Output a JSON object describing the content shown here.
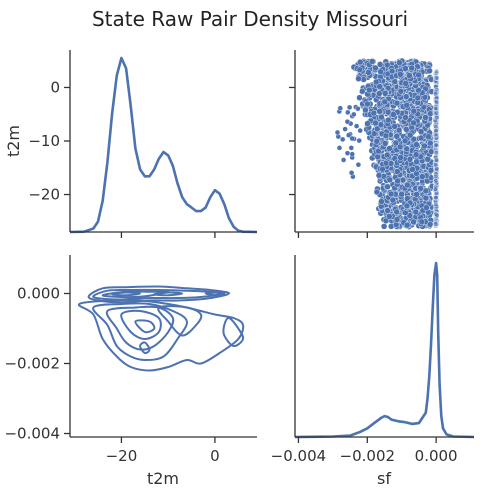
{
  "chart_data": {
    "type": "pairplot",
    "title": "State Raw Pair Density Missouri",
    "variables": [
      "t2m",
      "sf"
    ],
    "color": "#4c72b0",
    "t2m": {
      "label": "t2m",
      "range": [
        -31,
        9
      ],
      "ticks": [
        -20,
        0
      ],
      "tick_labels": [
        "−20",
        "0"
      ],
      "y_range": [
        -27,
        7
      ],
      "y_ticks": [
        0,
        -10,
        -20
      ],
      "y_tick_labels": [
        "0",
        "−10",
        "−20"
      ]
    },
    "sf": {
      "label": "sf",
      "range": [
        -0.0041,
        0.0011
      ],
      "ticks": [
        -0.004,
        -0.002,
        0.0
      ],
      "tick_labels": [
        "−0.004",
        "−0.002",
        "0.000"
      ],
      "y_range": [
        -0.0041,
        0.0011
      ],
      "y_ticks": [
        0.0,
        -0.002,
        -0.004
      ],
      "y_tick_labels": [
        "0.000",
        "−0.002",
        "−0.004"
      ]
    },
    "diag_t2m_density": [
      [
        -31,
        0.0
      ],
      [
        -28,
        0.001
      ],
      [
        -26,
        0.01
      ],
      [
        -25,
        0.03
      ],
      [
        -24,
        0.09
      ],
      [
        -23,
        0.2
      ],
      [
        -22,
        0.34
      ],
      [
        -21,
        0.45
      ],
      [
        -20,
        0.5
      ],
      [
        -19,
        0.47
      ],
      [
        -18,
        0.36
      ],
      [
        -17,
        0.24
      ],
      [
        -16,
        0.18
      ],
      [
        -15,
        0.16
      ],
      [
        -14,
        0.16
      ],
      [
        -13,
        0.18
      ],
      [
        -12,
        0.21
      ],
      [
        -11,
        0.23
      ],
      [
        -10,
        0.22
      ],
      [
        -9,
        0.19
      ],
      [
        -8,
        0.14
      ],
      [
        -7,
        0.1
      ],
      [
        -6,
        0.08
      ],
      [
        -5,
        0.07
      ],
      [
        -4,
        0.06
      ],
      [
        -3,
        0.06
      ],
      [
        -2,
        0.07
      ],
      [
        -1,
        0.1
      ],
      [
        0,
        0.12
      ],
      [
        1,
        0.11
      ],
      [
        2,
        0.08
      ],
      [
        3,
        0.04
      ],
      [
        4,
        0.015
      ],
      [
        5,
        0.004
      ],
      [
        6,
        0.001
      ],
      [
        9,
        0.0
      ]
    ],
    "diag_sf_density": [
      [
        -0.0041,
        0.0
      ],
      [
        -0.0036,
        0.001
      ],
      [
        -0.003,
        0.003
      ],
      [
        -0.0025,
        0.008
      ],
      [
        -0.0022,
        0.03
      ],
      [
        -0.002,
        0.05
      ],
      [
        -0.0018,
        0.08
      ],
      [
        -0.0016,
        0.11
      ],
      [
        -0.0015,
        0.12
      ],
      [
        -0.0014,
        0.115
      ],
      [
        -0.0013,
        0.1
      ],
      [
        -0.0011,
        0.09
      ],
      [
        -0.0009,
        0.085
      ],
      [
        -0.0007,
        0.075
      ],
      [
        -0.0005,
        0.08
      ],
      [
        -0.0003,
        0.14
      ],
      [
        -0.00025,
        0.22
      ],
      [
        -0.0002,
        0.35
      ],
      [
        -0.00015,
        0.53
      ],
      [
        -0.0001,
        0.74
      ],
      [
        -5e-05,
        0.93
      ],
      [
        0.0,
        1.0
      ],
      [
        3e-05,
        0.93
      ],
      [
        6e-05,
        0.6
      ],
      [
        0.0001,
        0.3
      ],
      [
        0.00015,
        0.12
      ],
      [
        0.0002,
        0.05
      ],
      [
        0.0003,
        0.015
      ],
      [
        0.0005,
        0.003
      ],
      [
        0.0011,
        0.0
      ]
    ],
    "kde_contours": [
      [
        [
          -27,
          -8e-05
        ],
        [
          -24,
          0.00015
        ],
        [
          -19,
          0.00018
        ],
        [
          -12,
          0.0002
        ],
        [
          -6,
          0.00015
        ],
        [
          -1,
          0.0001
        ],
        [
          3,
          0.0
        ],
        [
          -2,
          -0.00015
        ],
        [
          -8,
          -0.0002
        ],
        [
          -14,
          -0.0002
        ],
        [
          -20,
          -0.00025
        ],
        [
          -25,
          -0.0002
        ]
      ],
      [
        [
          -26,
          -0.0001
        ],
        [
          -23,
          8e-05
        ],
        [
          -18,
          0.0001
        ],
        [
          -12,
          0.0001
        ],
        [
          -6,
          8e-05
        ],
        [
          -1,
          5e-05
        ],
        [
          2,
          0.0
        ],
        [
          -3,
          -0.0001
        ],
        [
          -9,
          -0.00013
        ],
        [
          -15,
          -0.00013
        ],
        [
          -21,
          -0.00017
        ]
      ],
      [
        [
          -24,
          -5e-05
        ],
        [
          -19,
          5e-05
        ],
        [
          -14,
          5e-05
        ],
        [
          -10,
          5e-05
        ],
        [
          -15,
          -8e-05
        ],
        [
          -20,
          -0.0001
        ]
      ],
      [
        [
          -22,
          -2e-05
        ],
        [
          -19,
          3e-05
        ],
        [
          -16,
          0.0
        ],
        [
          -19,
          -5e-05
        ]
      ],
      [
        [
          -13,
          -2e-05
        ],
        [
          -10,
          3e-05
        ],
        [
          -7,
          0.0
        ],
        [
          -10,
          -5e-05
        ]
      ],
      [
        [
          -2,
          0.0
        ],
        [
          0,
          3e-05
        ],
        [
          2,
          0.0
        ],
        [
          0,
          -4e-05
        ]
      ],
      [
        [
          -29,
          -0.0003
        ],
        [
          -26,
          -0.0006
        ],
        [
          -24,
          -0.0013
        ],
        [
          -21,
          -0.0018
        ],
        [
          -18,
          -0.0021
        ],
        [
          -14,
          -0.0022
        ],
        [
          -10,
          -0.0021
        ],
        [
          -6,
          -0.0019
        ],
        [
          -3,
          -0.002
        ],
        [
          1,
          -0.0017
        ],
        [
          5,
          -0.0013
        ],
        [
          6,
          -0.0009
        ],
        [
          4,
          -0.0007
        ],
        [
          0,
          -0.0006
        ],
        [
          -3,
          -0.0005
        ],
        [
          -6,
          -0.0004
        ],
        [
          -10,
          -0.0003
        ],
        [
          -16,
          -0.0002
        ],
        [
          -22,
          -0.0002
        ]
      ],
      [
        [
          -26,
          -0.0004
        ],
        [
          -23,
          -0.0009
        ],
        [
          -21,
          -0.0015
        ],
        [
          -18,
          -0.0018
        ],
        [
          -15,
          -0.0019
        ],
        [
          -11,
          -0.0018
        ],
        [
          -8,
          -0.0013
        ],
        [
          -6,
          -0.0008
        ],
        [
          -9,
          -0.0005
        ],
        [
          -14,
          -0.0003
        ],
        [
          -20,
          -0.0003
        ]
      ],
      [
        [
          -23,
          -0.0005
        ],
        [
          -21,
          -0.001
        ],
        [
          -19,
          -0.0014
        ],
        [
          -16,
          -0.0016
        ],
        [
          -13,
          -0.0015
        ],
        [
          -10,
          -0.0011
        ],
        [
          -9,
          -0.0007
        ],
        [
          -12,
          -0.0004
        ],
        [
          -17,
          -0.0004
        ]
      ],
      [
        [
          -20,
          -0.0006
        ],
        [
          -18,
          -0.0011
        ],
        [
          -15,
          -0.0013
        ],
        [
          -12,
          -0.0011
        ],
        [
          -12,
          -0.0007
        ],
        [
          -16,
          -0.0005
        ]
      ],
      [
        [
          -17,
          -0.0008
        ],
        [
          -15,
          -0.0011
        ],
        [
          -13,
          -0.001
        ],
        [
          -14,
          -0.0008
        ]
      ],
      [
        [
          -16,
          -0.0015
        ],
        [
          -15,
          -0.0017
        ],
        [
          -14,
          -0.0016
        ],
        [
          -15,
          -0.0014
        ]
      ],
      [
        [
          -12,
          -0.0004
        ],
        [
          -10,
          -0.0008
        ],
        [
          -7,
          -0.0012
        ],
        [
          -4,
          -0.0009
        ],
        [
          -3,
          -0.0006
        ],
        [
          -6,
          -0.0004
        ]
      ],
      [
        [
          3,
          -0.0007
        ],
        [
          5,
          -0.001
        ],
        [
          6,
          -0.0013
        ],
        [
          4,
          -0.0015
        ],
        [
          2,
          -0.0012
        ],
        [
          2,
          -0.0009
        ]
      ]
    ],
    "scatter": {
      "x": "sf",
      "y": "t2m",
      "cloud_x_range": [
        -0.0025,
        -0.0001
      ],
      "cloud_y_range": [
        -26,
        5
      ],
      "column_x": 0.0,
      "column_y_range": [
        -26,
        3
      ]
    }
  }
}
